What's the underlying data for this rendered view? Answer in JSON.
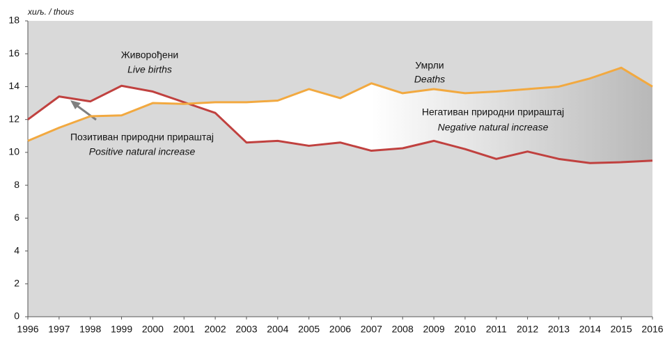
{
  "chart_data": {
    "type": "line",
    "y_label": "хиљ. / thous",
    "annotations": [
      "Живорођени",
      "Live births",
      "Умрли",
      "Deaths",
      "Негативан природни прираштај",
      "Negative natural increase",
      "Позитиван природни прираштај",
      "Positive natural increase"
    ],
    "x": [
      1996,
      1997,
      1998,
      1999,
      2000,
      2001,
      2002,
      2003,
      2004,
      2005,
      2006,
      2007,
      2008,
      2009,
      2010,
      2011,
      2012,
      2013,
      2014,
      2015,
      2016
    ],
    "xlim": [
      1996,
      2016
    ],
    "xticks": [
      1996,
      1997,
      1998,
      1999,
      2000,
      2001,
      2002,
      2003,
      2004,
      2005,
      2006,
      2007,
      2008,
      2009,
      2010,
      2011,
      2012,
      2013,
      2014,
      2015,
      2016
    ],
    "ylim": [
      0,
      18
    ],
    "yticks": [
      0,
      2,
      4,
      6,
      8,
      10,
      12,
      14,
      16,
      18
    ],
    "series": [
      {
        "name": "Живорођени",
        "color": "#c0413f",
        "values": [
          12.0,
          13.4,
          13.1,
          14.05,
          13.7,
          13.05,
          12.4,
          10.6,
          10.7,
          10.4,
          10.6,
          10.1,
          10.25,
          10.7,
          10.2,
          9.6,
          10.05,
          9.6,
          9.35,
          9.4,
          9.5
        ]
      },
      {
        "name": "Умрли",
        "color": "#f2a940",
        "values": [
          10.7,
          11.5,
          12.2,
          12.25,
          13.0,
          12.95,
          13.05,
          13.05,
          13.15,
          13.85,
          13.3,
          14.2,
          13.6,
          13.85,
          13.6,
          13.7,
          13.85,
          14.0,
          14.5,
          15.15,
          14.0
        ]
      }
    ]
  }
}
